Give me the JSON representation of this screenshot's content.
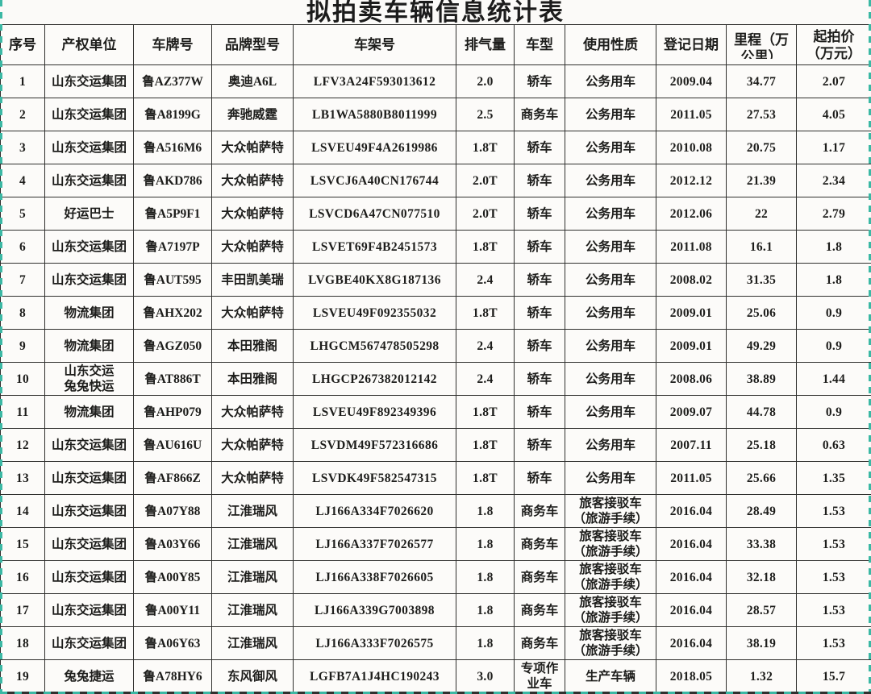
{
  "title": "拟拍卖车辆信息统计表",
  "table": {
    "columns": [
      {
        "key": "no",
        "label": "序号"
      },
      {
        "key": "owner",
        "label": "产权单位"
      },
      {
        "key": "plate",
        "label": "车牌号"
      },
      {
        "key": "model",
        "label": "品牌型号"
      },
      {
        "key": "vin",
        "label": "车架号"
      },
      {
        "key": "displacement",
        "label": "排气量"
      },
      {
        "key": "type",
        "label": "车型"
      },
      {
        "key": "usage",
        "label": "使用性质"
      },
      {
        "key": "reg_date",
        "label": "登记日期"
      },
      {
        "key": "mileage",
        "label": "里程（万公里）"
      },
      {
        "key": "price",
        "label": "起拍价\n（万元）"
      }
    ],
    "rows": [
      {
        "no": "1",
        "owner": "山东交运集团",
        "plate": "鲁AZ377W",
        "model": "奥迪A6L",
        "vin": "LFV3A24F593013612",
        "displacement": "2.0",
        "type": "轿车",
        "usage": "公务用车",
        "reg_date": "2009.04",
        "mileage": "34.77",
        "price": "2.07"
      },
      {
        "no": "2",
        "owner": "山东交运集团",
        "plate": "鲁A8199G",
        "model": "奔驰威霆",
        "vin": "LB1WA5880B8011999",
        "displacement": "2.5",
        "type": "商务车",
        "usage": "公务用车",
        "reg_date": "2011.05",
        "mileage": "27.53",
        "price": "4.05"
      },
      {
        "no": "3",
        "owner": "山东交运集团",
        "plate": "鲁A516M6",
        "model": "大众帕萨特",
        "vin": "LSVEU49F4A2619986",
        "displacement": "1.8T",
        "type": "轿车",
        "usage": "公务用车",
        "reg_date": "2010.08",
        "mileage": "20.75",
        "price": "1.17"
      },
      {
        "no": "4",
        "owner": "山东交运集团",
        "plate": "鲁AKD786",
        "model": "大众帕萨特",
        "vin": "LSVCJ6A40CN176744",
        "displacement": "2.0T",
        "type": "轿车",
        "usage": "公务用车",
        "reg_date": "2012.12",
        "mileage": "21.39",
        "price": "2.34"
      },
      {
        "no": "5",
        "owner": "好运巴士",
        "plate": "鲁A5P9F1",
        "model": "大众帕萨特",
        "vin": "LSVCD6A47CN077510",
        "displacement": "2.0T",
        "type": "轿车",
        "usage": "公务用车",
        "reg_date": "2012.06",
        "mileage": "22",
        "price": "2.79"
      },
      {
        "no": "6",
        "owner": "山东交运集团",
        "plate": "鲁A7197P",
        "model": "大众帕萨特",
        "vin": "LSVET69F4B2451573",
        "displacement": "1.8T",
        "type": "轿车",
        "usage": "公务用车",
        "reg_date": "2011.08",
        "mileage": "16.1",
        "price": "1.8"
      },
      {
        "no": "7",
        "owner": "山东交运集团",
        "plate": "鲁AUT595",
        "model": "丰田凯美瑞",
        "vin": "LVGBE40KX8G187136",
        "displacement": "2.4",
        "type": "轿车",
        "usage": "公务用车",
        "reg_date": "2008.02",
        "mileage": "31.35",
        "price": "1.8"
      },
      {
        "no": "8",
        "owner": "物流集团",
        "plate": "鲁AHX202",
        "model": "大众帕萨特",
        "vin": "LSVEU49F092355032",
        "displacement": "1.8T",
        "type": "轿车",
        "usage": "公务用车",
        "reg_date": "2009.01",
        "mileage": "25.06",
        "price": "0.9"
      },
      {
        "no": "9",
        "owner": "物流集团",
        "plate": "鲁AGZ050",
        "model": "本田雅阁",
        "vin": "LHGCM567478505298",
        "displacement": "2.4",
        "type": "轿车",
        "usage": "公务用车",
        "reg_date": "2009.01",
        "mileage": "49.29",
        "price": "0.9"
      },
      {
        "no": "10",
        "owner": "山东交运\n兔兔快运",
        "plate": "鲁AT886T",
        "model": "本田雅阁",
        "vin": "LHGCP267382012142",
        "displacement": "2.4",
        "type": "轿车",
        "usage": "公务用车",
        "reg_date": "2008.06",
        "mileage": "38.89",
        "price": "1.44"
      },
      {
        "no": "11",
        "owner": "物流集团",
        "plate": "鲁AHP079",
        "model": "大众帕萨特",
        "vin": "LSVEU49F892349396",
        "displacement": "1.8T",
        "type": "轿车",
        "usage": "公务用车",
        "reg_date": "2009.07",
        "mileage": "44.78",
        "price": "0.9"
      },
      {
        "no": "12",
        "owner": "山东交运集团",
        "plate": "鲁AU616U",
        "model": "大众帕萨特",
        "vin": "LSVDM49F572316686",
        "displacement": "1.8T",
        "type": "轿车",
        "usage": "公务用车",
        "reg_date": "2007.11",
        "mileage": "25.18",
        "price": "0.63"
      },
      {
        "no": "13",
        "owner": "山东交运集团",
        "plate": "鲁AF866Z",
        "model": "大众帕萨特",
        "vin": "LSVDK49F582547315",
        "displacement": "1.8T",
        "type": "轿车",
        "usage": "公务用车",
        "reg_date": "2011.05",
        "mileage": "25.66",
        "price": "1.35"
      },
      {
        "no": "14",
        "owner": "山东交运集团",
        "plate": "鲁A07Y88",
        "model": "江淮瑞风",
        "vin": "LJ166A334F7026620",
        "displacement": "1.8",
        "type": "商务车",
        "usage": "旅客接驳车\n（旅游手续）",
        "reg_date": "2016.04",
        "mileage": "28.49",
        "price": "1.53"
      },
      {
        "no": "15",
        "owner": "山东交运集团",
        "plate": "鲁A03Y66",
        "model": "江淮瑞风",
        "vin": "LJ166A337F7026577",
        "displacement": "1.8",
        "type": "商务车",
        "usage": "旅客接驳车\n（旅游手续）",
        "reg_date": "2016.04",
        "mileage": "33.38",
        "price": "1.53"
      },
      {
        "no": "16",
        "owner": "山东交运集团",
        "plate": "鲁A00Y85",
        "model": "江淮瑞风",
        "vin": "LJ166A338F7026605",
        "displacement": "1.8",
        "type": "商务车",
        "usage": "旅客接驳车\n（旅游手续）",
        "reg_date": "2016.04",
        "mileage": "32.18",
        "price": "1.53"
      },
      {
        "no": "17",
        "owner": "山东交运集团",
        "plate": "鲁A00Y11",
        "model": "江淮瑞风",
        "vin": "LJ166A339G7003898",
        "displacement": "1.8",
        "type": "商务车",
        "usage": "旅客接驳车\n（旅游手续）",
        "reg_date": "2016.04",
        "mileage": "28.57",
        "price": "1.53"
      },
      {
        "no": "18",
        "owner": "山东交运集团",
        "plate": "鲁A06Y63",
        "model": "江淮瑞风",
        "vin": "LJ166A333F7026575",
        "displacement": "1.8",
        "type": "商务车",
        "usage": "旅客接驳车\n（旅游手续）",
        "reg_date": "2016.04",
        "mileage": "38.19",
        "price": "1.53"
      },
      {
        "no": "19",
        "owner": "兔兔捷运",
        "plate": "鲁A78HY6",
        "model": "东风御风",
        "vin": "LGFB7A1J4HC190243",
        "displacement": "3.0",
        "type": "专项作业车",
        "usage": "生产车辆",
        "reg_date": "2018.05",
        "mileage": "1.32",
        "price": "15.7"
      }
    ]
  },
  "colors": {
    "page_break_teal": "#3bb8a4",
    "grid_border": "#30302e",
    "text": "#1d1d1b"
  }
}
